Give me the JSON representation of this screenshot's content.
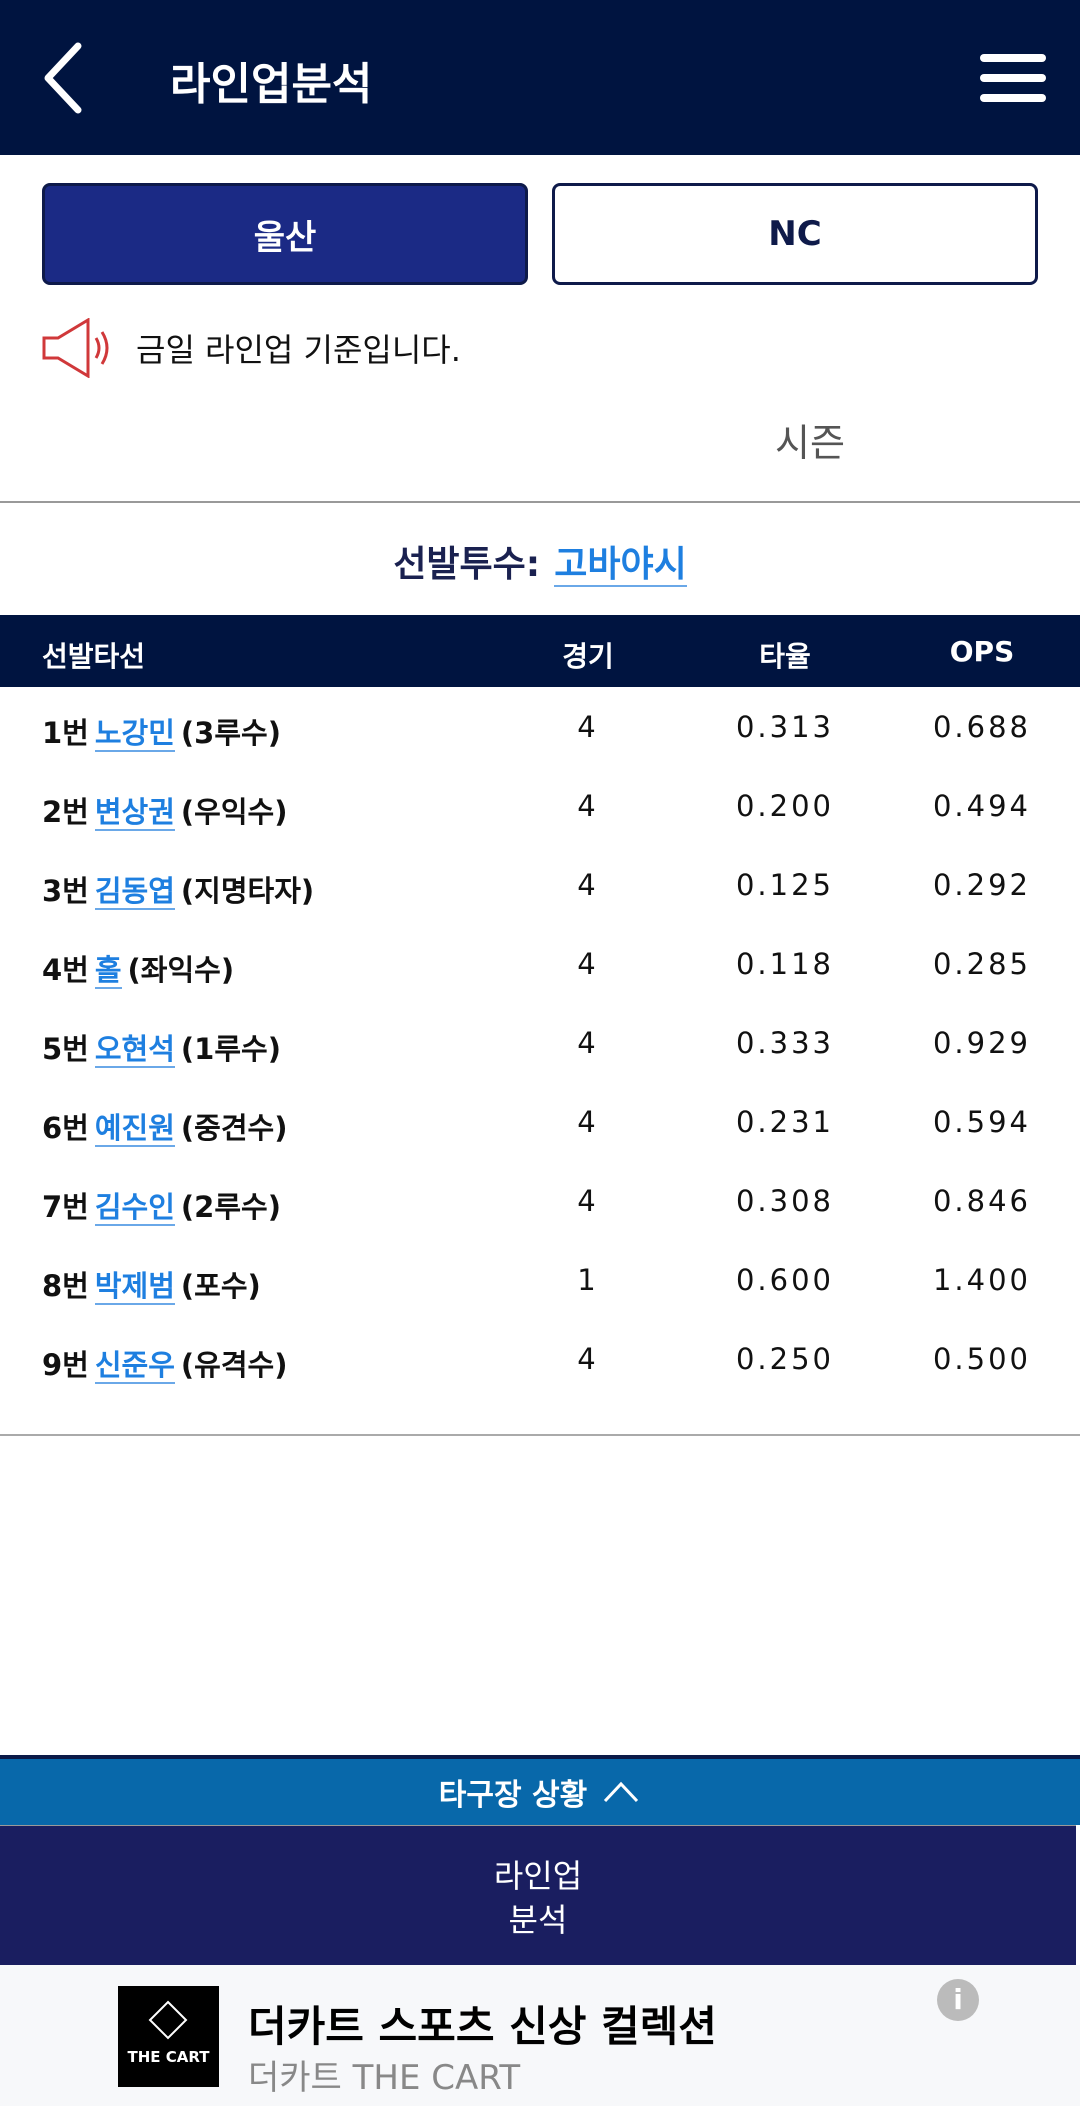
{
  "header": {
    "title": "라인업분석"
  },
  "tabs": [
    {
      "label": "울산",
      "active": true
    },
    {
      "label": "NC",
      "active": false
    }
  ],
  "notice": "금일 라인업 기준입니다.",
  "season_label": "시즌",
  "pitcher": {
    "label": "선발투수:",
    "name": "고바야시"
  },
  "table": {
    "headers": [
      "선발타선",
      "경기",
      "타율",
      "OPS"
    ],
    "rows": [
      {
        "order": "1번",
        "name": "노강민",
        "pos": "(3루수)",
        "games": "4",
        "avg": "0.313",
        "ops": "0.688"
      },
      {
        "order": "2번",
        "name": "변상권",
        "pos": "(우익수)",
        "games": "4",
        "avg": "0.200",
        "ops": "0.494"
      },
      {
        "order": "3번",
        "name": "김동엽",
        "pos": "(지명타자)",
        "games": "4",
        "avg": "0.125",
        "ops": "0.292"
      },
      {
        "order": "4번",
        "name": "홀",
        "pos": "(좌익수)",
        "games": "4",
        "avg": "0.118",
        "ops": "0.285"
      },
      {
        "order": "5번",
        "name": "오현석",
        "pos": "(1루수)",
        "games": "4",
        "avg": "0.333",
        "ops": "0.929"
      },
      {
        "order": "6번",
        "name": "예진원",
        "pos": "(중견수)",
        "games": "4",
        "avg": "0.231",
        "ops": "0.594"
      },
      {
        "order": "7번",
        "name": "김수인",
        "pos": "(2루수)",
        "games": "4",
        "avg": "0.308",
        "ops": "0.846"
      },
      {
        "order": "8번",
        "name": "박제범",
        "pos": "(포수)",
        "games": "1",
        "avg": "0.600",
        "ops": "1.400"
      },
      {
        "order": "9번",
        "name": "신준우",
        "pos": "(유격수)",
        "games": "4",
        "avg": "0.250",
        "ops": "0.500"
      }
    ]
  },
  "other_games": {
    "label": "타구장 상황"
  },
  "bottom_nav": {
    "line1": "라인업",
    "line2": "분석"
  },
  "ad": {
    "title": "더카트 스포츠 신상 컬렉션",
    "subtitle": "더카트 THE CART",
    "logo_text": "THE CART"
  }
}
